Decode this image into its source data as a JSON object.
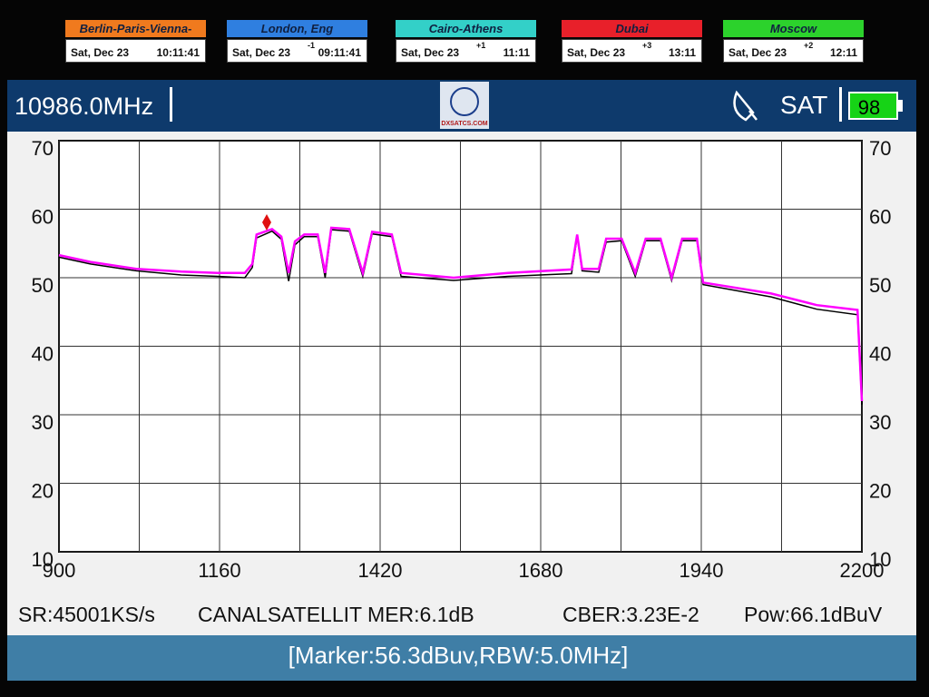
{
  "clocks": [
    {
      "city": "Berlin-Paris-Vienna-Roma",
      "date": "Sat, Dec 23",
      "time": "10:11:41"
    },
    {
      "city": "London, Eng",
      "date": "Sat, Dec 23",
      "offset": "-1",
      "time": "09:11:41"
    },
    {
      "city": "Cairo-Athens",
      "date": "Sat, Dec 23",
      "offset": "+1",
      "time": "11:11"
    },
    {
      "city": "Dubai",
      "date": "Sat, Dec 23",
      "offset": "+3",
      "time": "13:11"
    },
    {
      "city": "Moscow",
      "date": "Sat, Dec 23",
      "offset": "+2",
      "time": "12:11"
    }
  ],
  "header": {
    "frequency": "10986.0MHz",
    "logo": "DXSATCS.COM",
    "mode": "SAT",
    "battery": "98"
  },
  "status": {
    "sr": "SR:45001KS/s",
    "channel": "CANALSATELLIT MER:6.1dB",
    "cber": "CBER:3.23E-2",
    "power": "Pow:66.1dBuV"
  },
  "footer": {
    "marker": "[Marker:56.3dBuv,RBW:5.0MHz]"
  },
  "chart_data": {
    "type": "line",
    "x": [
      900,
      951,
      1025,
      1098,
      1157,
      1201,
      1213,
      1220,
      1245,
      1260,
      1272,
      1282,
      1297,
      1319,
      1331,
      1341,
      1370,
      1392,
      1407,
      1439,
      1454,
      1539,
      1627,
      1730,
      1739,
      1747,
      1774,
      1786,
      1811,
      1833,
      1850,
      1874,
      1892,
      1909,
      1933,
      1943,
      2053,
      2127,
      2193,
      2200
    ],
    "series": [
      {
        "color": "#000000",
        "values": [
          53.0,
          52.0,
          51.0,
          50.4,
          50.2,
          50.0,
          51.5,
          55.8,
          56.8,
          55.6,
          49.5,
          54.8,
          56.0,
          56.0,
          50.0,
          57.0,
          56.8,
          50.2,
          56.4,
          56.0,
          50.2,
          49.6,
          50.2,
          50.6,
          56.0,
          51.0,
          50.8,
          55.2,
          55.4,
          50.2,
          55.4,
          55.4,
          49.6,
          55.4,
          55.4,
          49.0,
          47.2,
          45.4,
          44.6,
          31.5
        ]
      },
      {
        "color": "#ff00ff",
        "values": [
          53.3,
          52.3,
          51.3,
          50.9,
          50.7,
          50.7,
          52.0,
          56.3,
          57.1,
          56.0,
          50.7,
          55.3,
          56.3,
          56.3,
          50.7,
          57.3,
          57.1,
          50.7,
          56.7,
          56.3,
          50.7,
          50.0,
          50.7,
          51.2,
          56.3,
          51.3,
          51.3,
          55.7,
          55.7,
          50.7,
          55.7,
          55.7,
          50.0,
          55.7,
          55.7,
          49.3,
          47.7,
          46.0,
          45.3,
          32.0
        ]
      }
    ],
    "xlim": [
      900,
      2200
    ],
    "ylim": [
      10,
      70
    ],
    "xticks": [
      900,
      1160,
      1420,
      1680,
      1940,
      2200
    ],
    "yticks": [
      10,
      20,
      30,
      40,
      50,
      60,
      70
    ],
    "grid": true
  }
}
